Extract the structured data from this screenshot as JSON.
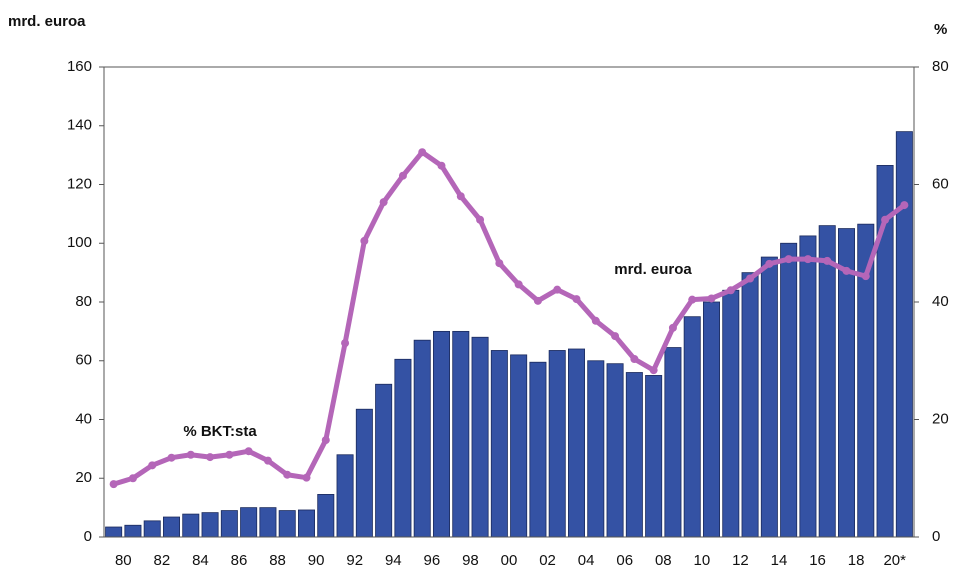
{
  "chart_data": {
    "type": "bar_line",
    "y_label": "mrd. euroa",
    "y2_label": "%",
    "categories": [
      "80",
      null,
      "82",
      null,
      "84",
      null,
      "86",
      null,
      "88",
      null,
      "90",
      null,
      "92",
      null,
      "94",
      null,
      "96",
      null,
      "98",
      null,
      "00",
      null,
      "02",
      null,
      "04",
      null,
      "06",
      null,
      "08",
      null,
      "10",
      null,
      "12",
      null,
      "14",
      null,
      "16",
      null,
      "18",
      null,
      "20*",
      null
    ],
    "series": [
      {
        "name": "mrd. euroa",
        "type": "bar",
        "color": "#3452a4",
        "values": [
          3.4,
          4,
          5.5,
          6.8,
          7.8,
          8.3,
          9,
          10,
          10,
          9,
          9.2,
          14.5,
          28,
          43.5,
          52,
          60.5,
          67,
          70,
          70,
          68,
          63.5,
          62,
          59.5,
          63.5,
          64,
          60,
          59,
          56,
          55,
          64.5,
          75,
          80,
          84,
          90,
          95.3,
          100,
          102.5,
          106,
          105,
          106.5,
          126.5,
          138
        ]
      },
      {
        "name": "% BKT:sta",
        "type": "line",
        "axis": "y2",
        "color": "#b466b8",
        "values": [
          9,
          10,
          12.2,
          13.5,
          14,
          13.6,
          14,
          14.6,
          13,
          10.6,
          10.1,
          16.5,
          33,
          50.4,
          57,
          61.5,
          65.5,
          63.2,
          58,
          54,
          46.6,
          43,
          40.2,
          42.1,
          40.5,
          36.8,
          34.2,
          30.3,
          28.4,
          35.6,
          40.4,
          40.6,
          42,
          44,
          46.5,
          47.3,
          47.3,
          47,
          45.3,
          44.4,
          54,
          56.5
        ]
      }
    ],
    "ylim": [
      0,
      160
    ],
    "yticks": [
      0,
      20,
      40,
      60,
      80,
      100,
      120,
      140,
      160
    ],
    "y2lim": [
      0,
      80
    ],
    "y2ticks": [
      0,
      20,
      40,
      60,
      80
    ]
  }
}
